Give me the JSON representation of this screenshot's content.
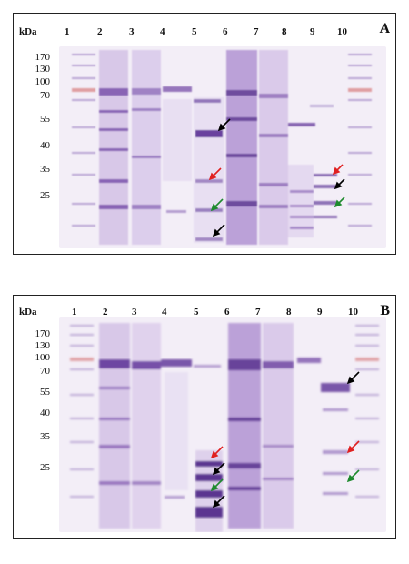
{
  "panels": [
    {
      "letter": "A",
      "unit": "kDa",
      "lanes": [
        "1",
        "2",
        "3",
        "4",
        "5",
        "6",
        "7",
        "8",
        "9",
        "10"
      ],
      "markers": [
        "170",
        "130",
        "100",
        "70",
        "55",
        "40",
        "35",
        "25"
      ]
    },
    {
      "letter": "B",
      "unit": "kDa",
      "lanes": [
        "1",
        "2",
        "3",
        "4",
        "5",
        "6",
        "7",
        "8",
        "9",
        "10"
      ],
      "markers": [
        "170",
        "130",
        "100",
        "70",
        "55",
        "40",
        "35",
        "25"
      ]
    }
  ],
  "colors": {
    "stain": "#7a4fa8",
    "marker_red": "#d46a6a",
    "arrow_black": "#000000",
    "arrow_red": "#e02020",
    "arrow_green": "#1e8a2e"
  }
}
